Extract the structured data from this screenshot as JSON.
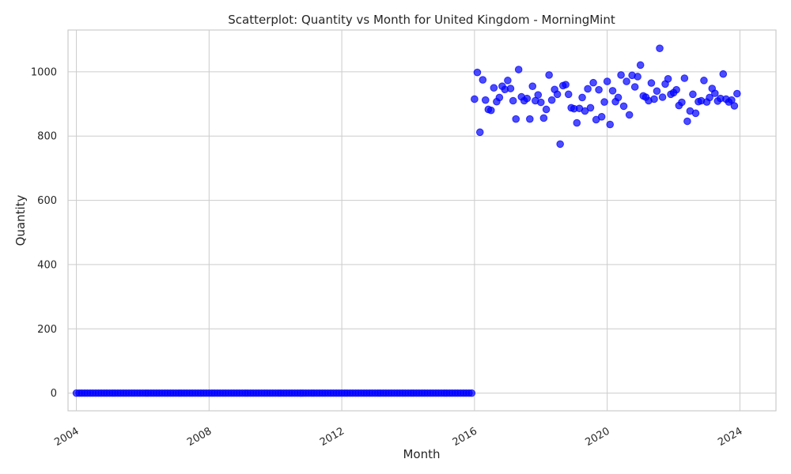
{
  "chart_data": {
    "type": "scatter",
    "title": "Scatterplot: Quantity vs Month for United Kingdom - MorningMint",
    "xlabel": "Month",
    "ylabel": "Quantity",
    "x_ticks": [
      "2004",
      "2008",
      "2012",
      "2016",
      "2020",
      "2024"
    ],
    "y_ticks": [
      0,
      200,
      400,
      600,
      800,
      1000
    ],
    "xlim": [
      "2003-10-01",
      "2025-02-01"
    ],
    "ylim": [
      -55,
      1130
    ],
    "grid": true,
    "legend": "none",
    "color": "#0000ff",
    "zero_range": {
      "start": "2004-01",
      "end": "2015-12",
      "value": 0
    },
    "points": [
      {
        "x": "2016-01",
        "y": 915
      },
      {
        "x": "2016-02",
        "y": 998
      },
      {
        "x": "2016-03",
        "y": 812
      },
      {
        "x": "2016-04",
        "y": 975
      },
      {
        "x": "2016-05",
        "y": 912
      },
      {
        "x": "2016-06",
        "y": 883
      },
      {
        "x": "2016-07",
        "y": 880
      },
      {
        "x": "2016-08",
        "y": 950
      },
      {
        "x": "2016-09",
        "y": 907
      },
      {
        "x": "2016-10",
        "y": 920
      },
      {
        "x": "2016-11",
        "y": 955
      },
      {
        "x": "2016-12",
        "y": 945
      },
      {
        "x": "2017-01",
        "y": 973
      },
      {
        "x": "2017-02",
        "y": 948
      },
      {
        "x": "2017-03",
        "y": 910
      },
      {
        "x": "2017-04",
        "y": 853
      },
      {
        "x": "2017-05",
        "y": 1007
      },
      {
        "x": "2017-06",
        "y": 922
      },
      {
        "x": "2017-07",
        "y": 910
      },
      {
        "x": "2017-08",
        "y": 917
      },
      {
        "x": "2017-09",
        "y": 853
      },
      {
        "x": "2017-10",
        "y": 955
      },
      {
        "x": "2017-11",
        "y": 910
      },
      {
        "x": "2017-12",
        "y": 928
      },
      {
        "x": "2018-01",
        "y": 905
      },
      {
        "x": "2018-02",
        "y": 856
      },
      {
        "x": "2018-03",
        "y": 883
      },
      {
        "x": "2018-04",
        "y": 990
      },
      {
        "x": "2018-05",
        "y": 912
      },
      {
        "x": "2018-06",
        "y": 945
      },
      {
        "x": "2018-07",
        "y": 930
      },
      {
        "x": "2018-08",
        "y": 775
      },
      {
        "x": "2018-09",
        "y": 957
      },
      {
        "x": "2018-10",
        "y": 960
      },
      {
        "x": "2018-11",
        "y": 930
      },
      {
        "x": "2018-12",
        "y": 888
      },
      {
        "x": "2019-01",
        "y": 885
      },
      {
        "x": "2019-02",
        "y": 841
      },
      {
        "x": "2019-03",
        "y": 886
      },
      {
        "x": "2019-04",
        "y": 920
      },
      {
        "x": "2019-05",
        "y": 878
      },
      {
        "x": "2019-06",
        "y": 947
      },
      {
        "x": "2019-07",
        "y": 888
      },
      {
        "x": "2019-08",
        "y": 966
      },
      {
        "x": "2019-09",
        "y": 851
      },
      {
        "x": "2019-10",
        "y": 944
      },
      {
        "x": "2019-11",
        "y": 860
      },
      {
        "x": "2019-12",
        "y": 906
      },
      {
        "x": "2020-01",
        "y": 970
      },
      {
        "x": "2020-02",
        "y": 836
      },
      {
        "x": "2020-03",
        "y": 941
      },
      {
        "x": "2020-04",
        "y": 907
      },
      {
        "x": "2020-05",
        "y": 920
      },
      {
        "x": "2020-06",
        "y": 990
      },
      {
        "x": "2020-07",
        "y": 893
      },
      {
        "x": "2020-08",
        "y": 970
      },
      {
        "x": "2020-09",
        "y": 866
      },
      {
        "x": "2020-10",
        "y": 989
      },
      {
        "x": "2020-11",
        "y": 953
      },
      {
        "x": "2020-12",
        "y": 985
      },
      {
        "x": "2021-01",
        "y": 1021
      },
      {
        "x": "2021-02",
        "y": 925
      },
      {
        "x": "2021-03",
        "y": 921
      },
      {
        "x": "2021-04",
        "y": 910
      },
      {
        "x": "2021-05",
        "y": 965
      },
      {
        "x": "2021-06",
        "y": 915
      },
      {
        "x": "2021-07",
        "y": 940
      },
      {
        "x": "2021-08",
        "y": 1073
      },
      {
        "x": "2021-09",
        "y": 921
      },
      {
        "x": "2021-10",
        "y": 962
      },
      {
        "x": "2021-11",
        "y": 978
      },
      {
        "x": "2021-12",
        "y": 930
      },
      {
        "x": "2022-01",
        "y": 935
      },
      {
        "x": "2022-02",
        "y": 944
      },
      {
        "x": "2022-03",
        "y": 895
      },
      {
        "x": "2022-04",
        "y": 905
      },
      {
        "x": "2022-05",
        "y": 980
      },
      {
        "x": "2022-06",
        "y": 846
      },
      {
        "x": "2022-07",
        "y": 878
      },
      {
        "x": "2022-08",
        "y": 930
      },
      {
        "x": "2022-09",
        "y": 871
      },
      {
        "x": "2022-10",
        "y": 907
      },
      {
        "x": "2022-11",
        "y": 910
      },
      {
        "x": "2022-12",
        "y": 973
      },
      {
        "x": "2023-01",
        "y": 906
      },
      {
        "x": "2023-02",
        "y": 920
      },
      {
        "x": "2023-03",
        "y": 948
      },
      {
        "x": "2023-04",
        "y": 933
      },
      {
        "x": "2023-05",
        "y": 909
      },
      {
        "x": "2023-06",
        "y": 917
      },
      {
        "x": "2023-07",
        "y": 993
      },
      {
        "x": "2023-08",
        "y": 915
      },
      {
        "x": "2023-09",
        "y": 906
      },
      {
        "x": "2023-10",
        "y": 912
      },
      {
        "x": "2023-11",
        "y": 894
      },
      {
        "x": "2023-12",
        "y": 932
      }
    ]
  }
}
